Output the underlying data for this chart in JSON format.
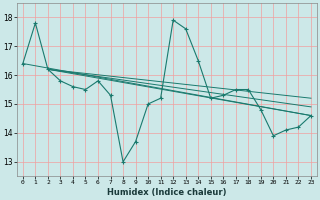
{
  "xlabel": "Humidex (Indice chaleur)",
  "ylabel": "",
  "bg_color": "#cce8e8",
  "grid_color": "#f0a0a0",
  "line_color": "#1a7a6e",
  "xlim": [
    -0.5,
    23.5
  ],
  "ylim": [
    12.5,
    18.5
  ],
  "yticks": [
    13,
    14,
    15,
    16,
    17,
    18
  ],
  "xticks": [
    0,
    1,
    2,
    3,
    4,
    5,
    6,
    7,
    8,
    9,
    10,
    11,
    12,
    13,
    14,
    15,
    16,
    17,
    18,
    19,
    20,
    21,
    22,
    23
  ],
  "series": [
    {
      "x": [
        0,
        1,
        2,
        3,
        4,
        5,
        6,
        7,
        8,
        9,
        10,
        11,
        12,
        13,
        14,
        15,
        16,
        17,
        18,
        19,
        20,
        21,
        22,
        23
      ],
      "y": [
        16.4,
        17.8,
        16.2,
        15.8,
        15.6,
        15.5,
        15.8,
        15.3,
        13.0,
        13.7,
        15.0,
        15.2,
        17.9,
        17.6,
        16.5,
        15.2,
        15.3,
        15.5,
        15.5,
        14.8,
        13.9,
        14.1,
        14.2,
        14.6
      ]
    },
    {
      "x": [
        0,
        23
      ],
      "y": [
        16.4,
        14.6
      ]
    },
    {
      "x": [
        2,
        23
      ],
      "y": [
        16.2,
        14.6
      ]
    },
    {
      "x": [
        2,
        23
      ],
      "y": [
        16.2,
        14.9
      ]
    },
    {
      "x": [
        2,
        23
      ],
      "y": [
        16.2,
        15.2
      ]
    }
  ]
}
